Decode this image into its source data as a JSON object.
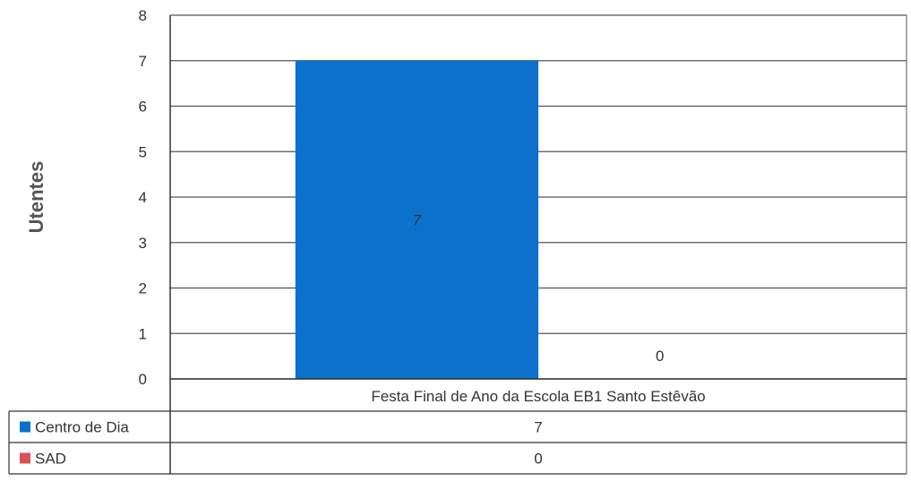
{
  "chart_data": {
    "type": "bar",
    "categories": [
      "Festa Final de Ano da Escola EB1 Santo Estêvão"
    ],
    "series": [
      {
        "name": "Centro de Dia",
        "values": [
          7
        ],
        "color": "#0b71cc"
      },
      {
        "name": "SAD",
        "values": [
          0
        ],
        "color": "#d9505a"
      }
    ],
    "ylabel": "Utentes",
    "ylim": [
      0,
      8
    ],
    "yticks": [
      0,
      1,
      2,
      3,
      4,
      5,
      6,
      7,
      8
    ],
    "grid": true,
    "data_labels": true,
    "legend": "data-table-below"
  }
}
